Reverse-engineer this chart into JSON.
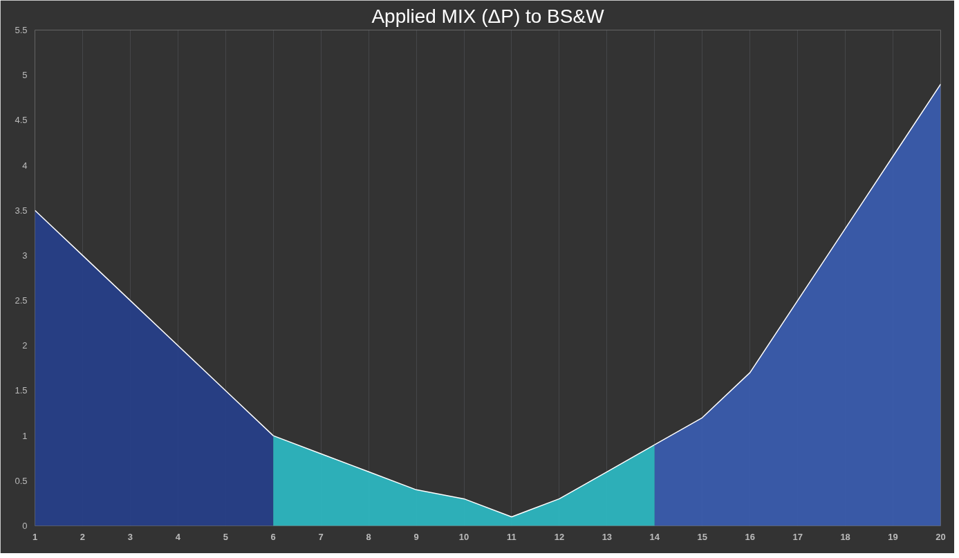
{
  "chart_data": {
    "type": "area",
    "title": "Applied MIX (ΔP) to BS&W",
    "series": [
      {
        "color": "#263f8c",
        "x": [
          1,
          2,
          3,
          4,
          5,
          6
        ],
        "values": [
          3.5,
          3.0,
          2.5,
          2.0,
          1.5,
          1.0
        ]
      },
      {
        "color": "#2cbcc6",
        "x": [
          6,
          7,
          8,
          9,
          10,
          11,
          12,
          13,
          14
        ],
        "values": [
          1.0,
          0.8,
          0.6,
          0.4,
          0.3,
          0.1,
          0.3,
          0.6,
          0.9
        ]
      },
      {
        "color": "#3a5db3",
        "x": [
          14,
          15,
          16,
          17,
          18,
          19,
          20
        ],
        "values": [
          0.9,
          1.2,
          1.7,
          2.5,
          3.3,
          4.1,
          4.9
        ]
      }
    ],
    "xlim": [
      1,
      20
    ],
    "xticks": [
      1,
      2,
      3,
      4,
      5,
      6,
      7,
      8,
      9,
      10,
      11,
      12,
      13,
      14,
      15,
      16,
      17,
      18,
      19,
      20
    ],
    "ylim": [
      0,
      5.5
    ],
    "yticks": [
      0,
      0.5,
      1,
      1.5,
      2,
      2.5,
      3,
      3.5,
      4,
      4.5,
      5,
      5.5
    ],
    "grid": "x"
  }
}
